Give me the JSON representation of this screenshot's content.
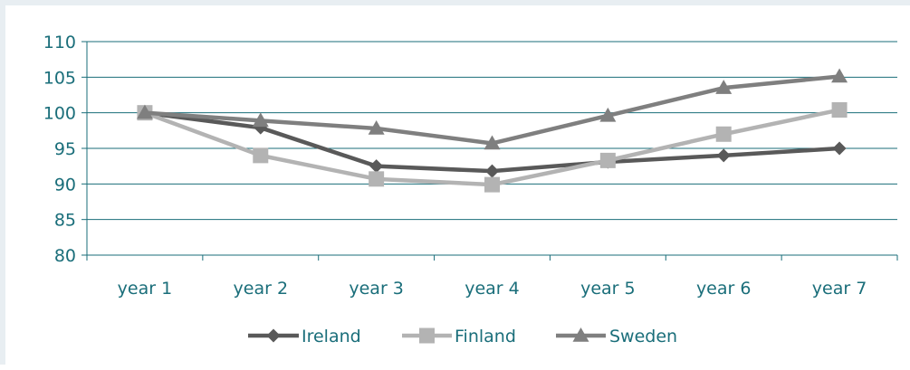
{
  "chart_data": {
    "type": "line",
    "categories": [
      "year 1",
      "year 2",
      "year 3",
      "year 4",
      "year 5",
      "year 6",
      "year 7"
    ],
    "series": [
      {
        "name": "Ireland",
        "values": [
          100,
          97.9,
          92.5,
          91.8,
          93.1,
          94,
          95
        ],
        "color": "#595959",
        "marker": "diamond"
      },
      {
        "name": "Finland",
        "values": [
          100,
          94,
          90.7,
          89.9,
          93.3,
          97,
          100.4
        ],
        "color": "#b3b3b3",
        "marker": "square"
      },
      {
        "name": "Sweden",
        "values": [
          100,
          98.9,
          97.8,
          95.7,
          99.6,
          103.5,
          105.1
        ],
        "color": "#7f7f7f",
        "marker": "triangle"
      }
    ],
    "ylim": [
      80,
      110
    ],
    "yticks": [
      80,
      85,
      90,
      95,
      100,
      105,
      110
    ],
    "axis_color": "#1a6e7a",
    "grid": true,
    "legend_position": "bottom"
  }
}
